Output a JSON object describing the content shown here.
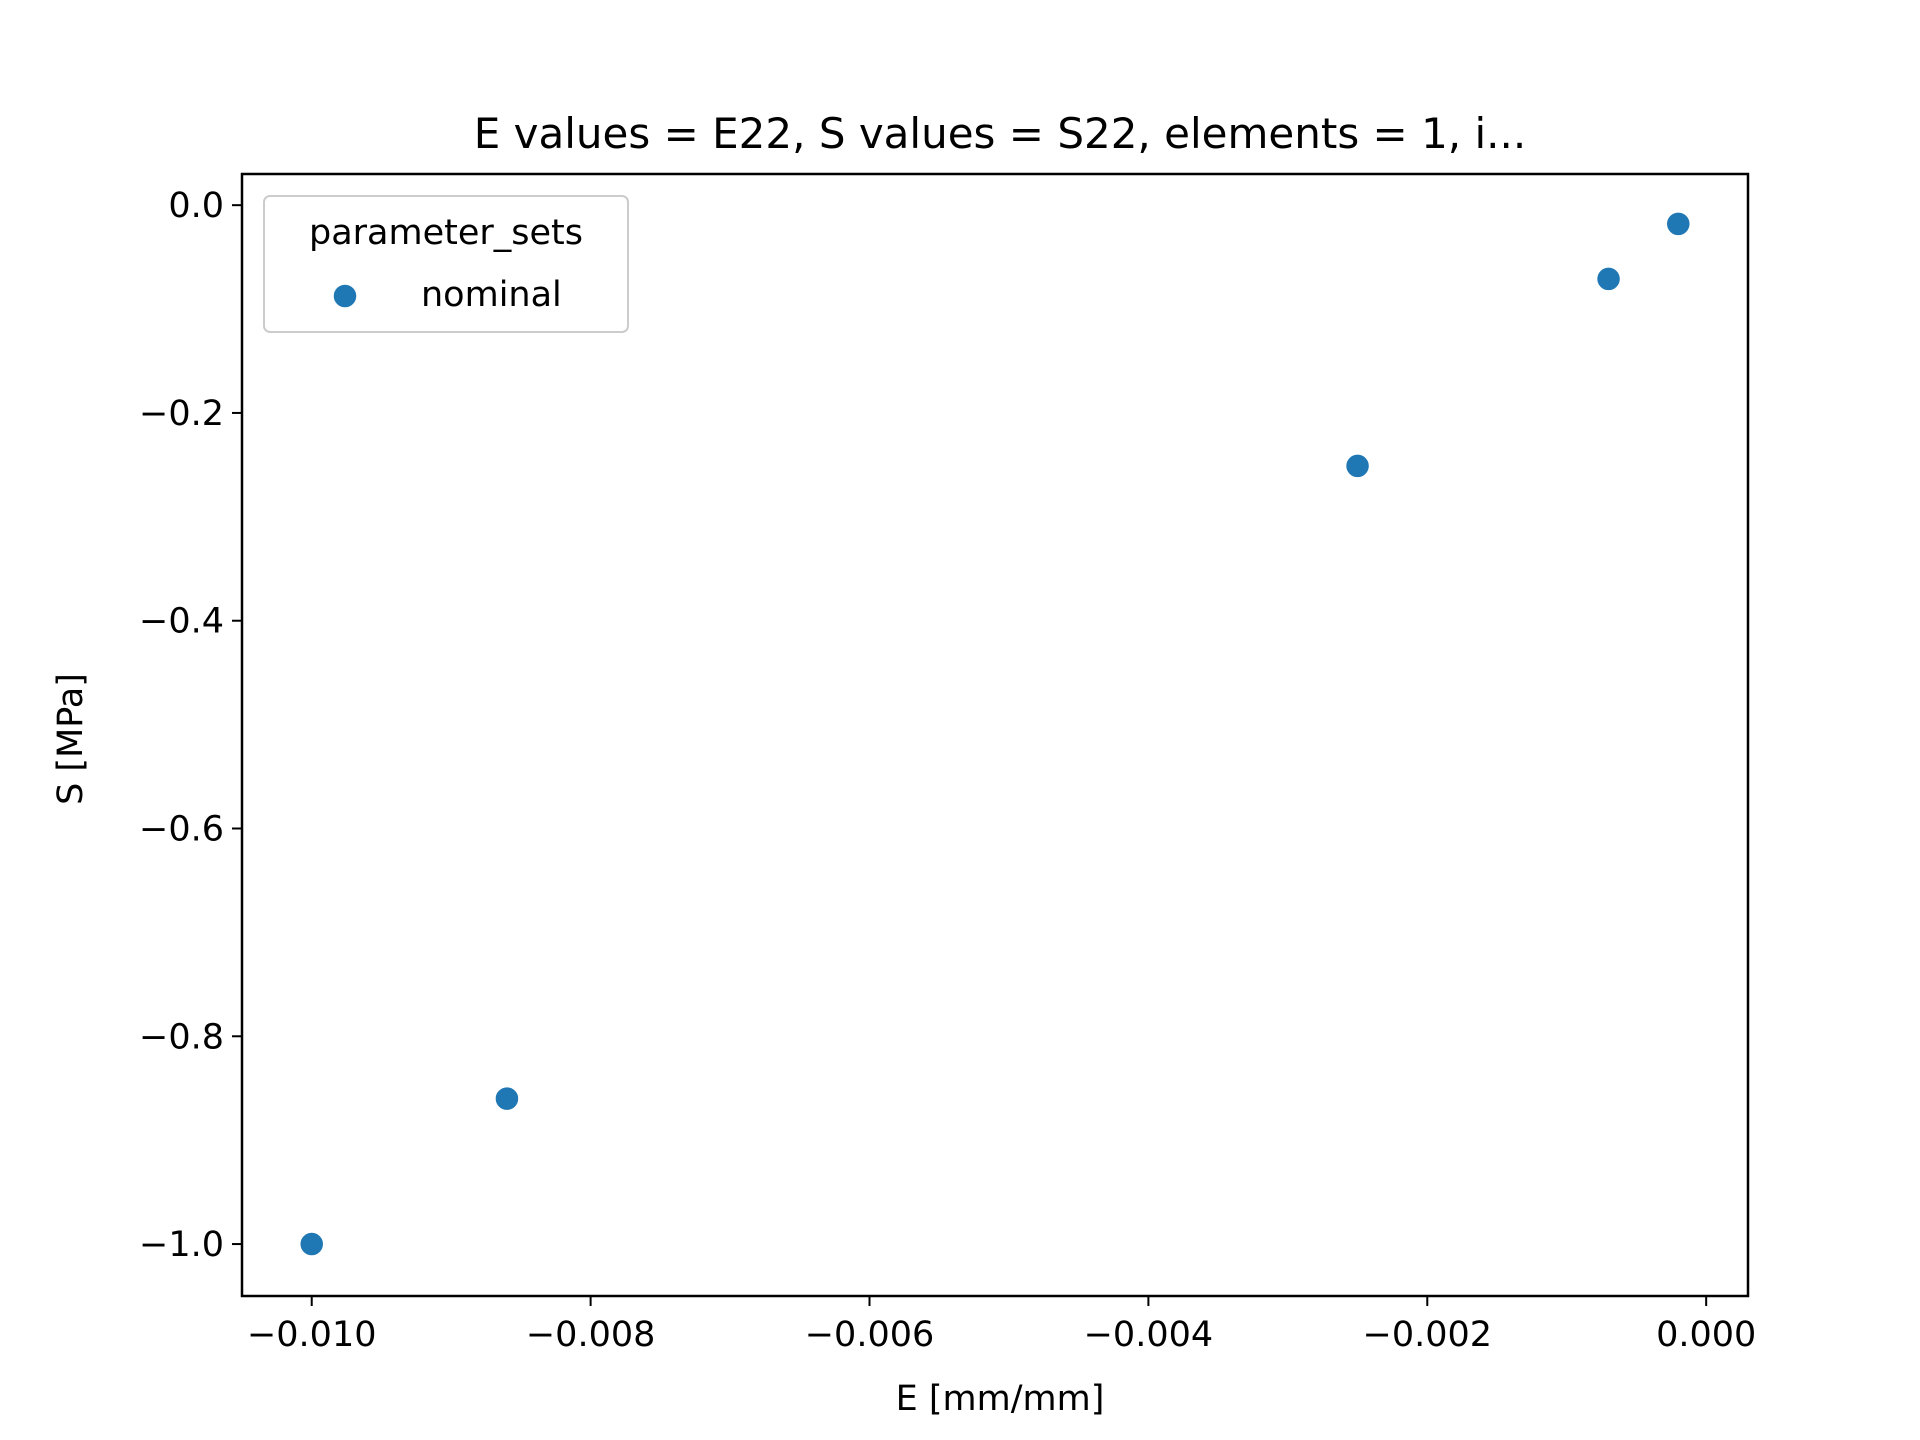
{
  "chart_data": {
    "type": "scatter",
    "title": "E values = E22, S values = S22, elements = 1, i...",
    "xlabel": "E [mm/mm]",
    "ylabel": "S [MPa]",
    "xlim": [
      -0.0105,
      0.0003
    ],
    "ylim": [
      -1.05,
      0.03
    ],
    "xticks": [
      -0.01,
      -0.008,
      -0.006,
      -0.004,
      -0.002,
      0.0
    ],
    "xtick_labels": [
      "−0.010",
      "−0.008",
      "−0.006",
      "−0.004",
      "−0.002",
      "0.000"
    ],
    "yticks": [
      0.0,
      -0.2,
      -0.4,
      -0.6,
      -0.8,
      -1.0
    ],
    "ytick_labels": [
      "0.0",
      "−0.2",
      "−0.4",
      "−0.6",
      "−0.8",
      "−1.0"
    ],
    "grid": false,
    "legend": {
      "title": "parameter_sets",
      "placement": "top-left"
    },
    "series": [
      {
        "name": "nominal",
        "color": "#1f77b4",
        "points": [
          {
            "x": -0.01,
            "y": -1.0
          },
          {
            "x": -0.0086,
            "y": -0.86
          },
          {
            "x": -0.0025,
            "y": -0.251
          },
          {
            "x": -0.0007,
            "y": -0.071
          },
          {
            "x": -0.0002,
            "y": -0.018
          }
        ]
      }
    ]
  }
}
